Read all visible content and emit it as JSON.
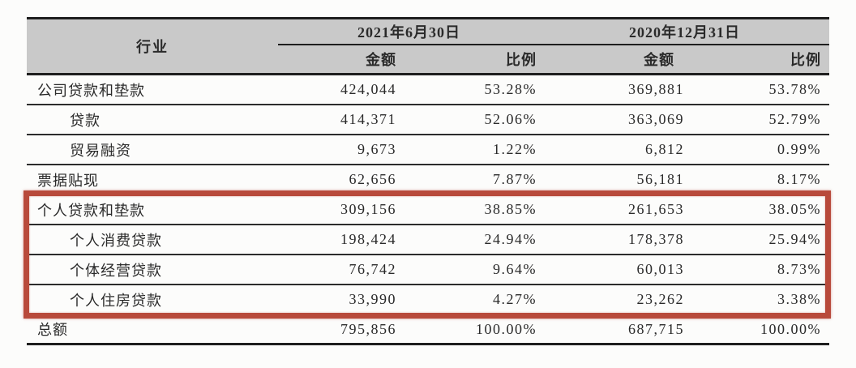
{
  "colors": {
    "highlight": "#b84a3b",
    "header_bg": "#c9c9c9",
    "rule": "#2c2c2c"
  },
  "table": {
    "industry_header": "行业",
    "col_groups": [
      {
        "label": "2021年6月30日",
        "sub_amount": "金额",
        "sub_ratio": "比例"
      },
      {
        "label": "2020年12月31日",
        "sub_amount": "金额",
        "sub_ratio": "比例"
      }
    ],
    "rows": [
      {
        "label": "公司贷款和垫款",
        "indent": false,
        "amt1": "424,044",
        "pct1": "53.28%",
        "amt2": "369,881",
        "pct2": "53.78%"
      },
      {
        "label": "贷款",
        "indent": true,
        "amt1": "414,371",
        "pct1": "52.06%",
        "amt2": "363,069",
        "pct2": "52.79%"
      },
      {
        "label": "贸易融资",
        "indent": true,
        "amt1": "9,673",
        "pct1": "1.22%",
        "amt2": "6,812",
        "pct2": "0.99%"
      },
      {
        "label": "票据贴现",
        "indent": false,
        "amt1": "62,656",
        "pct1": "7.87%",
        "amt2": "56,181",
        "pct2": "8.17%"
      },
      {
        "label": "个人贷款和垫款",
        "indent": false,
        "amt1": "309,156",
        "pct1": "38.85%",
        "amt2": "261,653",
        "pct2": "38.05%"
      },
      {
        "label": "个人消费贷款",
        "indent": true,
        "amt1": "198,424",
        "pct1": "24.94%",
        "amt2": "178,378",
        "pct2": "25.94%"
      },
      {
        "label": "个体经营贷款",
        "indent": true,
        "amt1": "76,742",
        "pct1": "9.64%",
        "amt2": "60,013",
        "pct2": "8.73%"
      },
      {
        "label": "个人住房贷款",
        "indent": true,
        "amt1": "33,990",
        "pct1": "4.27%",
        "amt2": "23,262",
        "pct2": "3.38%"
      },
      {
        "label": "总额",
        "indent": false,
        "amt1": "795,856",
        "pct1": "100.00%",
        "amt2": "687,715",
        "pct2": "100.00%"
      }
    ],
    "highlighted_row_labels": [
      "个人贷款和垫款",
      "个人消费贷款",
      "个体经营贷款",
      "个人住房贷款"
    ]
  }
}
